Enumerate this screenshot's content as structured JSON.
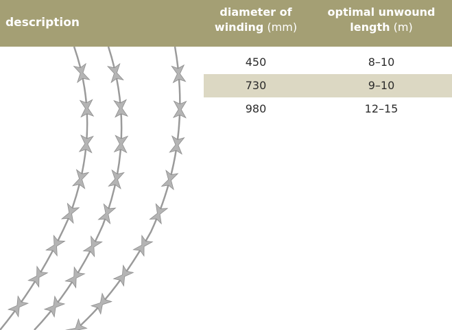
{
  "header": {
    "description": "description",
    "columns": [
      {
        "lines": [
          "diameter of",
          "winding"
        ],
        "unit": "(mm)"
      },
      {
        "lines": [
          "optimal unwound",
          "length"
        ],
        "unit": "(m)"
      }
    ]
  },
  "table": {
    "rows": [
      [
        "450",
        "8–10"
      ],
      [
        "730",
        "9–10"
      ],
      [
        "980",
        "12–15"
      ]
    ]
  }
}
